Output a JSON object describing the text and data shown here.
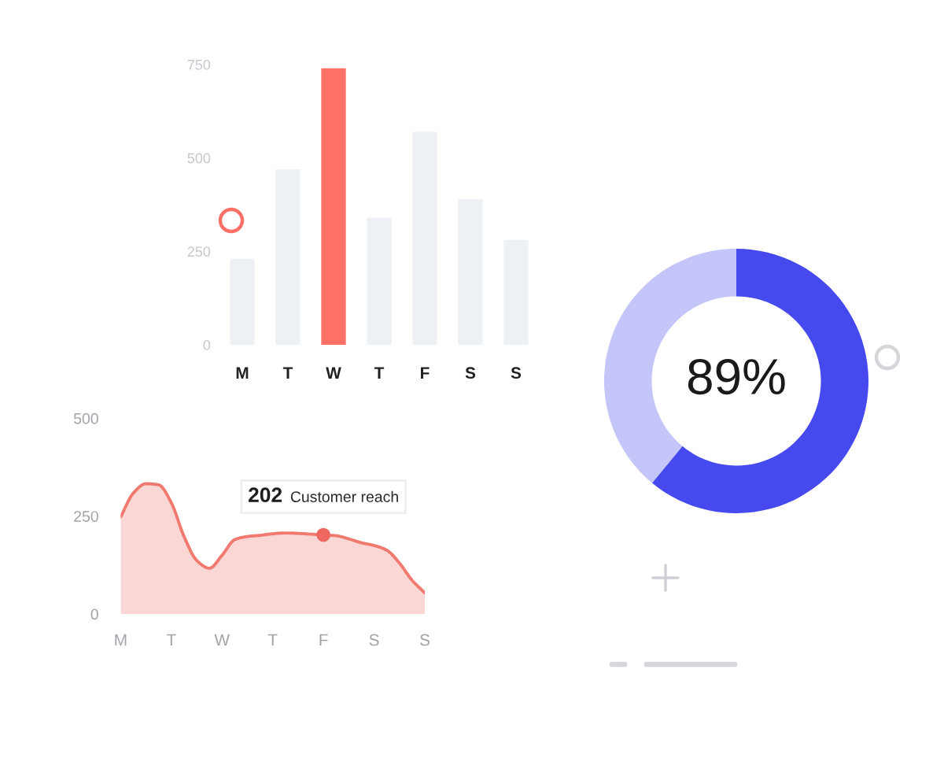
{
  "chart_data": [
    {
      "type": "bar",
      "categories": [
        "M",
        "T",
        "W",
        "T",
        "F",
        "S",
        "S"
      ],
      "values": [
        230,
        470,
        740,
        340,
        570,
        390,
        280
      ],
      "colors": [
        "#edf0f5",
        "#edf0f5",
        "#ff7166",
        "#edf0f5",
        "#edf0f5",
        "#edf0f5",
        "#edf0f5"
      ],
      "ylim": [
        0,
        750
      ],
      "yticks": [
        0,
        250,
        500,
        750
      ]
    },
    {
      "type": "area",
      "categories": [
        "M",
        null,
        null,
        null,
        "T",
        null,
        null,
        null,
        "W",
        null,
        null,
        null,
        "T",
        null,
        null,
        null,
        "F",
        null,
        null,
        null,
        "S",
        null,
        null,
        null,
        "S"
      ],
      "series": [
        {
          "type": "area",
          "color": "#f07a6f",
          "values": [
            248,
            309,
            333,
            330,
            284,
            198,
            137,
            117,
            150,
            190,
            198,
            201,
            205,
            207,
            206,
            204,
            202,
            200,
            192,
            182,
            175,
            163,
            130,
            86,
            54
          ]
        },
        {
          "type": "scatter",
          "color": "#ee6760",
          "x": [
            "F"
          ],
          "values": [
            202
          ]
        }
      ],
      "ylim": [
        0,
        500
      ],
      "yticks": [
        0,
        250,
        500
      ],
      "annotations": [
        {
          "text": "202 Customer reach",
          "x": "F",
          "y": 202
        }
      ]
    },
    {
      "type": "donut",
      "categories": [
        null,
        null
      ],
      "values": [
        61,
        39
      ],
      "colors": [
        "#4649ee",
        "#c4c5f8"
      ],
      "annotations": [
        "89%"
      ]
    }
  ]
}
